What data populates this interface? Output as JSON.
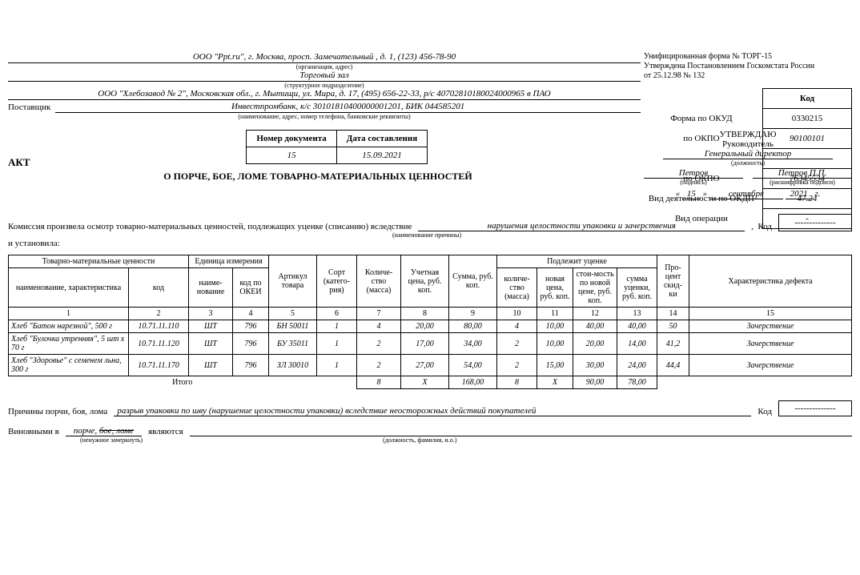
{
  "form_note": {
    "line1": "Унифицированная форма № ТОРГ-15",
    "line2": "Утверждена Постановлением Госкомстата России",
    "line3": "от 25.12.98 № 132"
  },
  "codes": {
    "header": "Код",
    "okud_label": "Форма по ОКУД",
    "okud": "0330215",
    "okpo1_label": "по ОКПО",
    "okpo1": "90100101",
    "okpo2_label": "по ОКПО",
    "okpo2": "76345534",
    "okdp_label": "Вид деятельности по ОКДП",
    "okdp": "47.24",
    "oper_label": "Вид операции",
    "oper": "-"
  },
  "org": {
    "org_line": "ООО \"Ppt.ru\", г. Москва, просп. Замечательный , д. 1, (123) 456-78-90",
    "org_hint": "(организация, адрес)",
    "dept_line": "Торговый зал",
    "dept_hint": "(структурное подразделение)",
    "supplier_label": "Поставщик",
    "supplier_line1": "ООО \"Хлебозавод № 2\", Московская обл., г. Мытищи, ул. Мира, д. 17, (495) 656-22-33, р/с 40702810180024000965 в ПАО",
    "supplier_line2": "Инвестпромбанк, к/с 30101810400000001201, БИК 044585201",
    "supplier_hint": "(наименование, адрес, номер телефона, банковские реквизиты)"
  },
  "doc": {
    "num_header": "Номер документа",
    "date_header": "Дата составления",
    "num": "15",
    "date": "15.09.2021",
    "act": "АКТ",
    "subtitle": "О ПОРЧЕ, БОЕ, ЛОМЕ ТОВАРНО-МАТЕРИАЛЬНЫХ ЦЕННОСТЕЙ"
  },
  "approve": {
    "title": "УТВЕРЖДАЮ",
    "role": "Руководитель",
    "position": "Генеральный директор",
    "position_hint": "(должность)",
    "sig": "Петров",
    "sig_name": "Петров П.П.",
    "sig_hint1": "(подпись)",
    "sig_hint2": "(расшифровка подписи)",
    "date_day": "15",
    "date_month": "сентября",
    "date_year": "2021"
  },
  "reason": {
    "prefix": "Комиссия произвела осмотр товарно-материальных ценностей, подлежащих уценке (списанию) вследствие",
    "value": "нарушения целостности упаковки и зачерствения",
    "hint": "(наименование причины)",
    "code": "--------------",
    "and_found": "и установила:"
  },
  "table": {
    "headers": {
      "tmc": "Товарно-материальные ценности",
      "unit": "Единица измерения",
      "name": "наименование, характеристика",
      "code": "код",
      "unit_name": "наиме-нование",
      "okei": "код по ОКЕИ",
      "article": "Артикул товара",
      "sort": "Сорт (катего-рия)",
      "qty": "Количе-ство (масса)",
      "price": "Учетная цена, руб. коп.",
      "sum": "Сумма, руб. коп.",
      "markdown": "Подлежит уценке",
      "md_qty": "количе-ство (масса)",
      "md_price": "новая цена, руб. коп.",
      "md_cost": "стои-мость по новой цене, руб. коп.",
      "md_sum": "сумма уценки, руб. коп.",
      "discount": "Про-цент скид-ки",
      "defect": "Характеристика дефекта"
    },
    "nums": [
      "1",
      "2",
      "3",
      "4",
      "5",
      "6",
      "7",
      "8",
      "9",
      "10",
      "11",
      "12",
      "13",
      "14",
      "15"
    ],
    "rows": [
      {
        "name": "Хлеб \"Батон нарезной\", 500 г",
        "code": "10.71.11.110",
        "unit": "ШТ",
        "okei": "796",
        "art": "БН 50011",
        "sort": "1",
        "qty": "4",
        "price": "20,00",
        "sum": "80,00",
        "mqty": "4",
        "mprice": "10,00",
        "mcost": "40,00",
        "msum": "40,00",
        "disc": "50",
        "def": "Зачерствение"
      },
      {
        "name": "Хлеб \"Булочка утренняя\", 5 шт х 70 г",
        "code": "10.71.11.120",
        "unit": "ШТ",
        "okei": "796",
        "art": "БУ 35011",
        "sort": "1",
        "qty": "2",
        "price": "17,00",
        "sum": "34,00",
        "mqty": "2",
        "mprice": "10,00",
        "mcost": "20,00",
        "msum": "14,00",
        "disc": "41,2",
        "def": "Зачерствение"
      },
      {
        "name": "Хлеб \"Здоровье\" с семенем льна, 300 г",
        "code": "10.71.11.170",
        "unit": "ШТ",
        "okei": "796",
        "art": "ЗЛ 30010",
        "sort": "1",
        "qty": "2",
        "price": "27,00",
        "sum": "54,00",
        "mqty": "2",
        "mprice": "15,00",
        "mcost": "30,00",
        "msum": "24,00",
        "disc": "44,4",
        "def": "Зачерствение"
      }
    ],
    "totals": {
      "label": "Итого",
      "qty": "8",
      "price": "Х",
      "sum": "168,00",
      "mqty": "8",
      "mprice": "Х",
      "mcost": "90,00",
      "msum": "78,00"
    }
  },
  "causes": {
    "label": "Причины порчи, боя, лома",
    "value": "разрыв упаковки по швy (нарушение целостности упаковки) вследствие неосторожных действий покупателей",
    "code_label": "Код",
    "code": "--------------"
  },
  "guilty": {
    "prefix": "Виновными в",
    "v1": "порче,",
    "v2_strike": "бое, ломе",
    "mid": "являются",
    "hint1": "(ненужное зачеркнуть)",
    "hint2": "(должность, фамилия, и.о.)"
  }
}
